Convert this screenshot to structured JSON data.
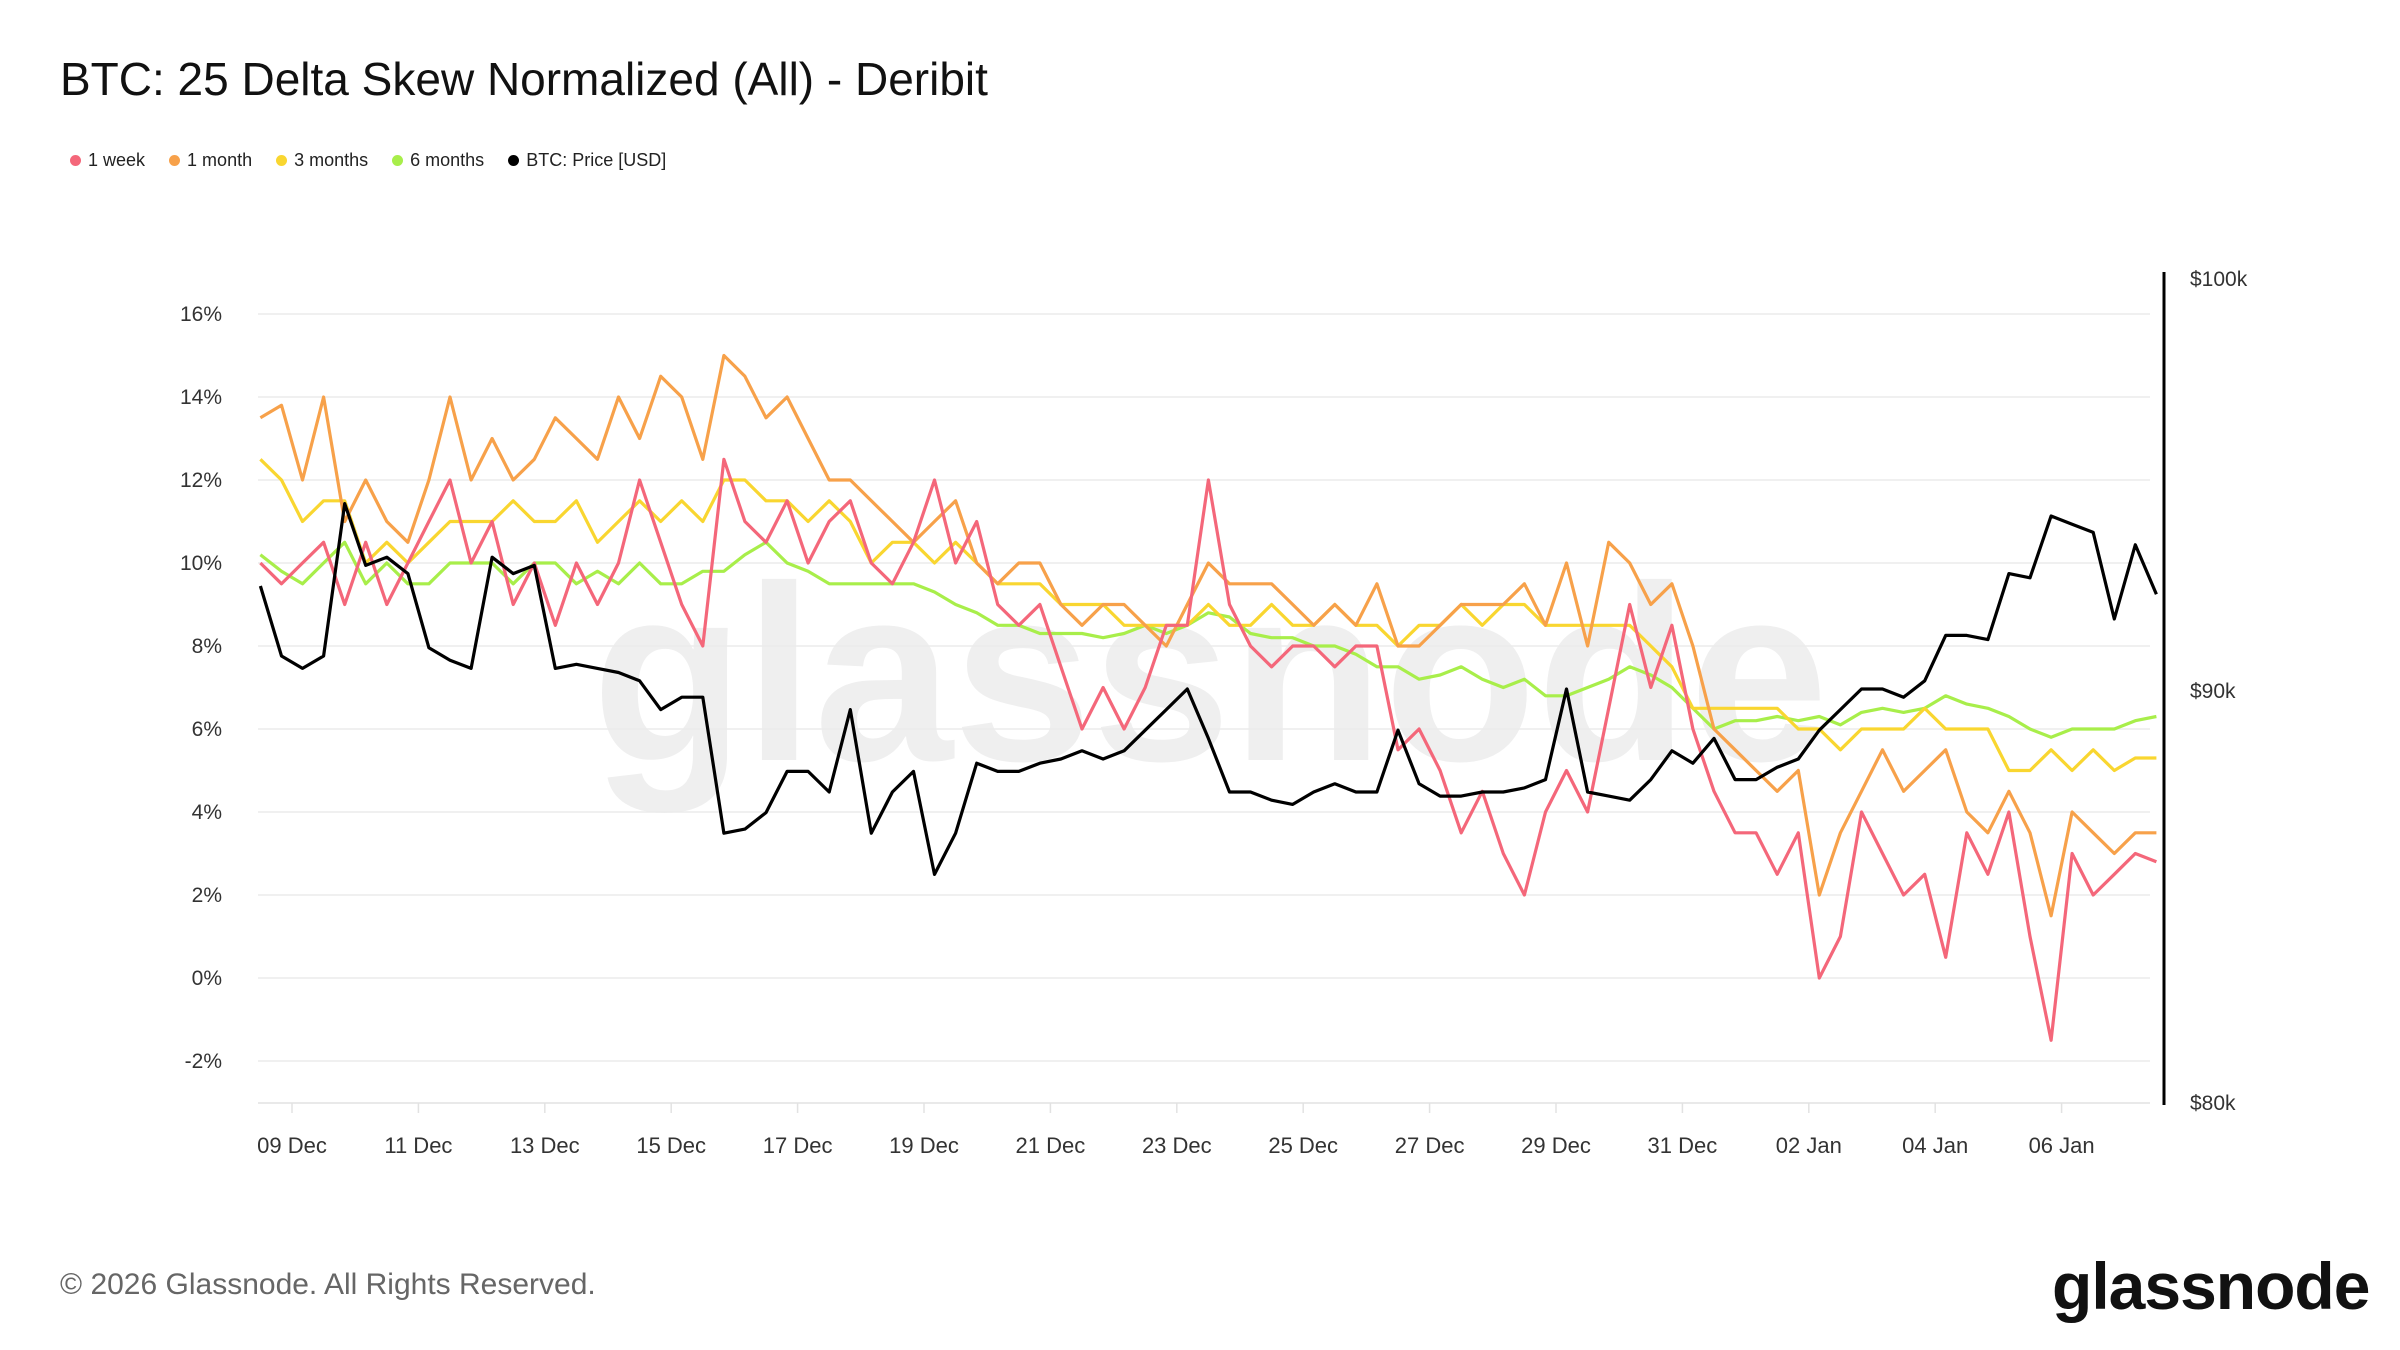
{
  "title": "BTC: 25 Delta Skew Normalized (All) - Deribit",
  "footer": "© 2026 Glassnode. All Rights Reserved.",
  "logo": "glassnode",
  "watermark": "glassnode",
  "chart_data": {
    "type": "line",
    "title": "BTC: 25 Delta Skew Normalized (All) - Deribit",
    "legend_position": "top-left",
    "grid": true,
    "x_ticks": [
      "09 Dec",
      "11 Dec",
      "13 Dec",
      "15 Dec",
      "17 Dec",
      "19 Dec",
      "21 Dec",
      "23 Dec",
      "25 Dec",
      "27 Dec",
      "29 Dec",
      "31 Dec",
      "02 Jan",
      "04 Jan",
      "06 Jan"
    ],
    "y_left": {
      "ticks": [
        "-2%",
        "0%",
        "2%",
        "4%",
        "6%",
        "8%",
        "10%",
        "12%",
        "14%",
        "16%"
      ],
      "range": [
        -2,
        16
      ],
      "unit": "%"
    },
    "y_right": {
      "ticks": [
        "$80k",
        "$90k",
        "$100k"
      ],
      "range": [
        80000,
        100000
      ]
    },
    "x_range": [
      "08 Dec",
      "07 Jan"
    ],
    "series": [
      {
        "name": "1 week",
        "color": "#f4677a",
        "axis": "left",
        "values": [
          10,
          9.5,
          10,
          10.5,
          9,
          10.5,
          9,
          10,
          11,
          12,
          10,
          11,
          9,
          10,
          8.5,
          10,
          9,
          10,
          12,
          10.5,
          9,
          8,
          12.5,
          11,
          10.5,
          11.5,
          10,
          11,
          11.5,
          10,
          9.5,
          10.5,
          12,
          10,
          11,
          9,
          8.5,
          9,
          7.5,
          6,
          7,
          6,
          7,
          8.5,
          8.5,
          12,
          9,
          8,
          7.5,
          8,
          8,
          7.5,
          8,
          8,
          5.5,
          6,
          5,
          3.5,
          4.5,
          3,
          2,
          4,
          5,
          4,
          6.5,
          9,
          7,
          8.5,
          6,
          4.5,
          3.5,
          3.5,
          2.5,
          3.5,
          0,
          1,
          4,
          3,
          2,
          2.5,
          0.5,
          3.5,
          2.5,
          4,
          1,
          -1.5,
          3,
          2,
          2.5,
          3,
          2.8
        ]
      },
      {
        "name": "1 month",
        "color": "#f7a14a",
        "axis": "left",
        "values": [
          13.5,
          13.8,
          12,
          14,
          11,
          12,
          11,
          10.5,
          12,
          14,
          12,
          13,
          12,
          12.5,
          13.5,
          13,
          12.5,
          14,
          13,
          14.5,
          14,
          12.5,
          15,
          14.5,
          13.5,
          14,
          13,
          12,
          12,
          11.5,
          11,
          10.5,
          11,
          11.5,
          10,
          9.5,
          10,
          10,
          9,
          8.5,
          9,
          9,
          8.5,
          8,
          9,
          10,
          9.5,
          9.5,
          9.5,
          9,
          8.5,
          9,
          8.5,
          9.5,
          8,
          8,
          8.5,
          9,
          9,
          9,
          9.5,
          8.5,
          10,
          8,
          10.5,
          10,
          9,
          9.5,
          8,
          6,
          5.5,
          5,
          4.5,
          5,
          2,
          3.5,
          4.5,
          5.5,
          4.5,
          5,
          5.5,
          4,
          3.5,
          4.5,
          3.5,
          1.5,
          4,
          3.5,
          3,
          3.5,
          3.5
        ]
      },
      {
        "name": "3 months",
        "color": "#f9d630",
        "axis": "left",
        "values": [
          12.5,
          12,
          11,
          11.5,
          11.5,
          10,
          10.5,
          10,
          10.5,
          11,
          11,
          11,
          11.5,
          11,
          11,
          11.5,
          10.5,
          11,
          11.5,
          11,
          11.5,
          11,
          12,
          12,
          11.5,
          11.5,
          11,
          11.5,
          11,
          10,
          10.5,
          10.5,
          10,
          10.5,
          10,
          9.5,
          9.5,
          9.5,
          9,
          9,
          9,
          8.5,
          8.5,
          8.5,
          8.5,
          9,
          8.5,
          8.5,
          9,
          8.5,
          8.5,
          9,
          8.5,
          8.5,
          8,
          8.5,
          8.5,
          9,
          8.5,
          9,
          9,
          8.5,
          8.5,
          8.5,
          8.5,
          8.5,
          8,
          7.5,
          6.5,
          6.5,
          6.5,
          6.5,
          6.5,
          6,
          6,
          5.5,
          6,
          6,
          6,
          6.5,
          6,
          6,
          6,
          5,
          5,
          5.5,
          5,
          5.5,
          5,
          5.3,
          5.3
        ]
      },
      {
        "name": "6 months",
        "color": "#a8ee4a",
        "axis": "left",
        "values": [
          10.2,
          9.8,
          9.5,
          10,
          10.5,
          9.5,
          10,
          9.5,
          9.5,
          10,
          10,
          10,
          9.5,
          10,
          10,
          9.5,
          9.8,
          9.5,
          10,
          9.5,
          9.5,
          9.8,
          9.8,
          10.2,
          10.5,
          10,
          9.8,
          9.5,
          9.5,
          9.5,
          9.5,
          9.5,
          9.3,
          9,
          8.8,
          8.5,
          8.5,
          8.3,
          8.3,
          8.3,
          8.2,
          8.3,
          8.5,
          8.3,
          8.5,
          8.8,
          8.7,
          8.3,
          8.2,
          8.2,
          8,
          8,
          7.8,
          7.5,
          7.5,
          7.2,
          7.3,
          7.5,
          7.2,
          7,
          7.2,
          6.8,
          6.8,
          7,
          7.2,
          7.5,
          7.3,
          7,
          6.5,
          6,
          6.2,
          6.2,
          6.3,
          6.2,
          6.3,
          6.1,
          6.4,
          6.5,
          6.4,
          6.5,
          6.8,
          6.6,
          6.5,
          6.3,
          6,
          5.8,
          6,
          6,
          6,
          6.2,
          6.3
        ]
      },
      {
        "name": "BTC: Price [USD]",
        "color": "#000000",
        "axis": "right",
        "values": [
          92500,
          90800,
          90500,
          90800,
          94500,
          93000,
          93200,
          92800,
          91000,
          90700,
          90500,
          93200,
          92800,
          93000,
          90500,
          90600,
          90500,
          90400,
          90200,
          89500,
          89800,
          89800,
          86500,
          86600,
          87000,
          88000,
          88000,
          87500,
          89500,
          86500,
          87500,
          88000,
          85500,
          86500,
          88200,
          88000,
          88000,
          88200,
          88300,
          88500,
          88300,
          88500,
          89000,
          89500,
          90000,
          88800,
          87500,
          87500,
          87300,
          87200,
          87500,
          87700,
          87500,
          87500,
          89000,
          87700,
          87400,
          87400,
          87500,
          87500,
          87600,
          87800,
          90000,
          87500,
          87400,
          87300,
          87800,
          88500,
          88200,
          88800,
          87800,
          87800,
          88100,
          88300,
          89000,
          89500,
          90000,
          90000,
          89800,
          90200,
          91300,
          91300,
          91200,
          92800,
          92700,
          94200,
          94000,
          93800,
          91700,
          93500,
          92300
        ]
      }
    ]
  }
}
